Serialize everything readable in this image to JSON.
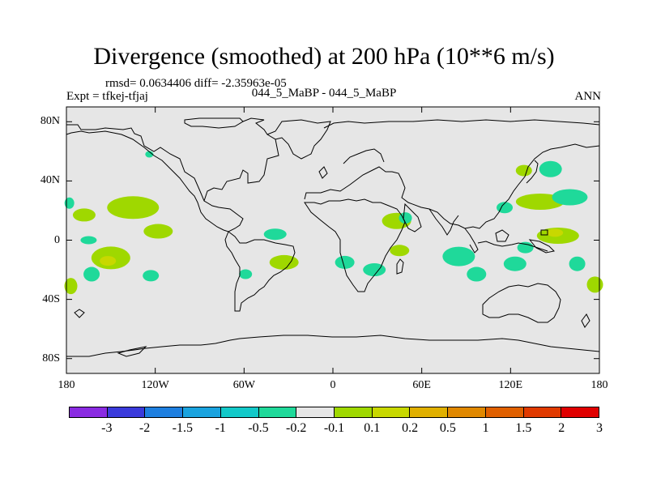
{
  "title": "Divergence (smoothed) at 200 hPa (10**6 m/s)",
  "rmsd_line": "rmsd= 0.0634406 diff= -2.35963e-05",
  "expt_line": "Expt = tfkej-tfjaj",
  "cases_line": "044_5_MaBP - 044_5_MaBP",
  "season": "ANN",
  "map": {
    "projection": "cylindrical-equidistant",
    "lon_range": [
      -180,
      180
    ],
    "lat_range": [
      -90,
      90
    ],
    "background_color": "#e6e6e6",
    "y_ticks": [
      {
        "lat": 80,
        "label": "80N"
      },
      {
        "lat": 40,
        "label": "40N"
      },
      {
        "lat": 0,
        "label": "0"
      },
      {
        "lat": -40,
        "label": "40S"
      },
      {
        "lat": -80,
        "label": "80S"
      }
    ],
    "x_ticks": [
      {
        "lon": -180,
        "label": "180"
      },
      {
        "lon": -120,
        "label": "120W"
      },
      {
        "lon": -60,
        "label": "60W"
      },
      {
        "lon": 0,
        "label": "0"
      },
      {
        "lon": 60,
        "label": "60E"
      },
      {
        "lon": 120,
        "label": "120E"
      },
      {
        "lon": 180,
        "label": "180"
      }
    ]
  },
  "colorbar": {
    "colors": [
      "#8a2be2",
      "#3a3adb",
      "#1e7fe0",
      "#1aa3df",
      "#12c9c9",
      "#1fd99a",
      "#e6e6e6",
      "#9fd800",
      "#c8d800",
      "#e0b000",
      "#e08800",
      "#e06000",
      "#e03a00",
      "#e00000"
    ],
    "labels": [
      "-3",
      "-2",
      "-1.5",
      "-1",
      "-0.5",
      "-0.2",
      "-0.1",
      "0.1",
      "0.2",
      "0.5",
      "1",
      "1.5",
      "2",
      "3"
    ]
  },
  "divergence_regions": [
    {
      "level": "0.1 to 0.2",
      "lon": -135,
      "lat": 22,
      "color": "#9fd800"
    },
    {
      "level": "0.1 to 0.2",
      "lon": -168,
      "lat": 17,
      "color": "#9fd800"
    },
    {
      "level": "0.1 to 0.2",
      "lon": -150,
      "lat": -12,
      "color": "#9fd800"
    },
    {
      "level": "0.1 to 0.2",
      "lon": -118,
      "lat": 6,
      "color": "#9fd800"
    },
    {
      "level": "0.2 to 0.5",
      "lon": -152,
      "lat": -14,
      "color": "#c8d800"
    },
    {
      "level": "0.1 to 0.2",
      "lon": -33,
      "lat": -15,
      "color": "#9fd800"
    },
    {
      "level": "0.1 to 0.2",
      "lon": 45,
      "lat": -7,
      "color": "#9fd800"
    },
    {
      "level": "0.1 to 0.2",
      "lon": 140,
      "lat": 26,
      "color": "#9fd800"
    },
    {
      "level": "0.1 to 0.2",
      "lon": 152,
      "lat": 3,
      "color": "#9fd800"
    },
    {
      "level": "0.2 to 0.5",
      "lon": 150,
      "lat": 5,
      "color": "#c8d800"
    },
    {
      "level": "0.1 to 0.2",
      "lon": 129,
      "lat": 47,
      "color": "#9fd800"
    },
    {
      "level": "0.1 to 0.2",
      "lon": 177,
      "lat": -30,
      "color": "#9fd800"
    },
    {
      "level": "0.1 to 0.2",
      "lon": -177,
      "lat": -31,
      "color": "#9fd800"
    },
    {
      "level": "0.1 to 0.2",
      "lon": 43,
      "lat": 13,
      "color": "#9fd800"
    },
    {
      "level": "-0.2 to -0.1",
      "lon": -178,
      "lat": 25,
      "color": "#1fd99a"
    },
    {
      "level": "-0.2 to -0.1",
      "lon": -165,
      "lat": 0,
      "color": "#1fd99a"
    },
    {
      "level": "-0.2 to -0.1",
      "lon": -163,
      "lat": -23,
      "color": "#1fd99a"
    },
    {
      "level": "-0.2 to -0.1",
      "lon": -123,
      "lat": -24,
      "color": "#1fd99a"
    },
    {
      "level": "-0.2 to -0.1",
      "lon": -39,
      "lat": 4,
      "color": "#1fd99a"
    },
    {
      "level": "-0.2 to -0.1",
      "lon": -59,
      "lat": -23,
      "color": "#1fd99a"
    },
    {
      "level": "-0.2 to -0.1",
      "lon": 8,
      "lat": -15,
      "color": "#1fd99a"
    },
    {
      "level": "-0.2 to -0.1",
      "lon": 28,
      "lat": -20,
      "color": "#1fd99a"
    },
    {
      "level": "-0.2 to -0.1",
      "lon": 85,
      "lat": -11,
      "color": "#1fd99a"
    },
    {
      "level": "-0.2 to -0.1",
      "lon": 116,
      "lat": 22,
      "color": "#1fd99a"
    },
    {
      "level": "-0.2 to -0.1",
      "lon": 160,
      "lat": 29,
      "color": "#1fd99a"
    },
    {
      "level": "-0.2 to -0.1",
      "lon": 97,
      "lat": -23,
      "color": "#1fd99a"
    },
    {
      "level": "-0.2 to -0.1",
      "lon": 123,
      "lat": -16,
      "color": "#1fd99a"
    },
    {
      "level": "-0.2 to -0.1",
      "lon": 165,
      "lat": -16,
      "color": "#1fd99a"
    },
    {
      "level": "-0.2 to -0.1",
      "lon": 130,
      "lat": -5,
      "color": "#1fd99a"
    },
    {
      "level": "-0.2 to -0.1",
      "lon": -124,
      "lat": 58,
      "color": "#1fd99a"
    },
    {
      "level": "-0.2 to -0.1",
      "lon": 49,
      "lat": 15,
      "color": "#1fd99a"
    },
    {
      "level": "-0.2 to -0.1",
      "lon": 147,
      "lat": 48,
      "color": "#1fd99a"
    }
  ]
}
